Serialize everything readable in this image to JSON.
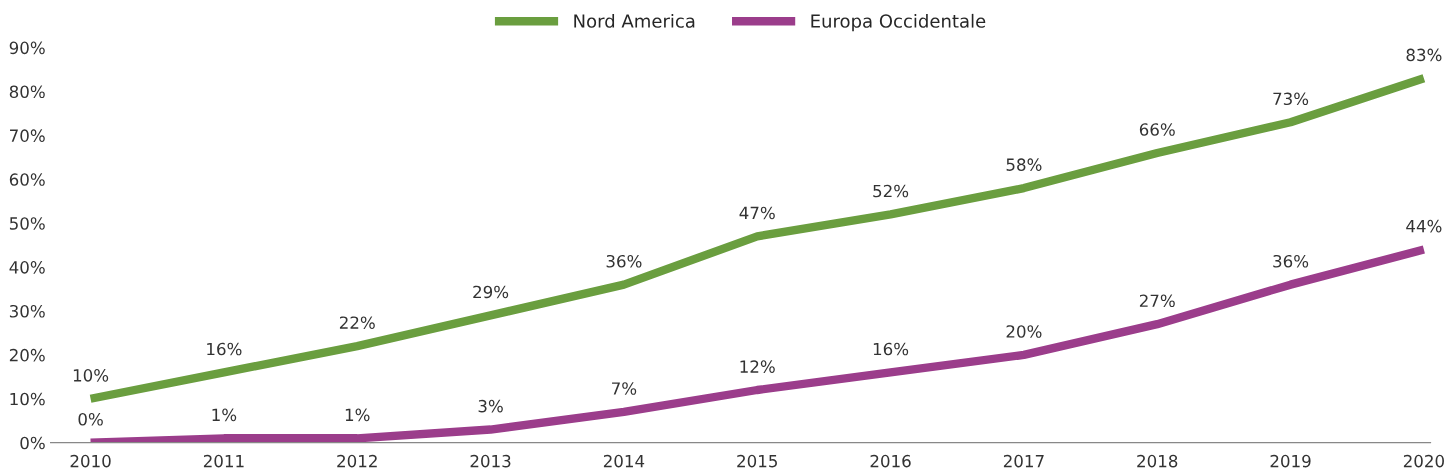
{
  "chart_data": {
    "type": "line",
    "categories": [
      "2010",
      "2011",
      "2012",
      "2013",
      "2014",
      "2015",
      "2016",
      "2017",
      "2018",
      "2019",
      "2020"
    ],
    "series": [
      {
        "name": "Nord America",
        "color": "#6a9e3f",
        "values": [
          10,
          16,
          22,
          29,
          36,
          47,
          52,
          58,
          66,
          73,
          83
        ],
        "value_labels": [
          "10%",
          "16%",
          "22%",
          "29%",
          "36%",
          "47%",
          "52%",
          "58%",
          "66%",
          "73%",
          "83%"
        ]
      },
      {
        "name": "Europa Occidentale",
        "color": "#9b3d8b",
        "values": [
          0,
          1,
          1,
          3,
          7,
          12,
          16,
          20,
          27,
          36,
          44
        ],
        "value_labels": [
          "0%",
          "1%",
          "1%",
          "3%",
          "7%",
          "12%",
          "16%",
          "20%",
          "27%",
          "36%",
          "44%"
        ]
      }
    ],
    "ylim": [
      0,
      90
    ],
    "yticks": [
      {
        "value": 0,
        "label": "0%"
      },
      {
        "value": 10,
        "label": "10%"
      },
      {
        "value": 20,
        "label": "20%"
      },
      {
        "value": 30,
        "label": "30%"
      },
      {
        "value": 40,
        "label": "40%"
      },
      {
        "value": 50,
        "label": "50%"
      },
      {
        "value": 60,
        "label": "60%"
      },
      {
        "value": 70,
        "label": "70%"
      },
      {
        "value": 80,
        "label": "80%"
      },
      {
        "value": 90,
        "label": "90%"
      }
    ],
    "grid": false,
    "legend": "top",
    "marker": "none",
    "line_style": "solid"
  }
}
